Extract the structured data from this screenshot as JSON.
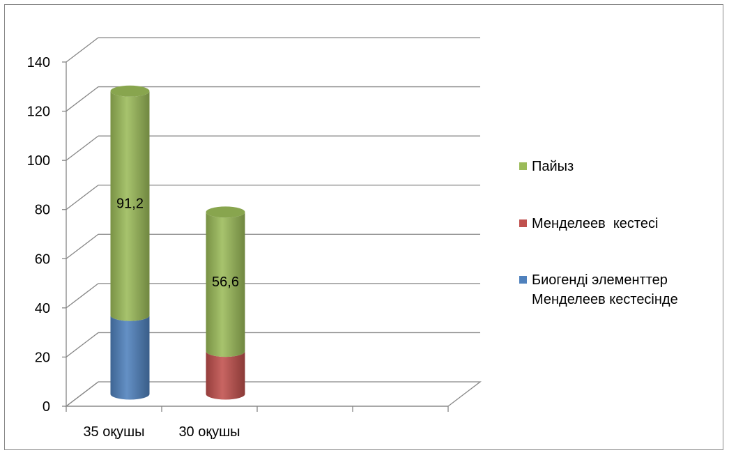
{
  "chart_data": {
    "type": "bar",
    "stacked": true,
    "three_d": true,
    "categories": [
      "35 оқушы",
      "30 оқушы",
      "",
      ""
    ],
    "ylim": [
      0,
      140
    ],
    "yticks": [
      0,
      20,
      40,
      60,
      80,
      100,
      120,
      140
    ],
    "grid": true,
    "legend_position": "right",
    "series": [
      {
        "name": "Биогенді элементтер Менделеев кестесінде",
        "color": "#4F81BD",
        "values": [
          32,
          0,
          0,
          0
        ]
      },
      {
        "name": "Менделеев  кестесі",
        "color": "#C0504D",
        "values": [
          0,
          17.4,
          0,
          0
        ]
      },
      {
        "name": "Пайыз",
        "color": "#9BBB59",
        "values": [
          91.2,
          56.6,
          0,
          0
        ]
      }
    ],
    "data_labels": [
      {
        "category": "35 оқушы",
        "series": "Пайыз",
        "text": "91,2"
      },
      {
        "category": "30 оқушы",
        "series": "Пайыз",
        "text": "56,6"
      }
    ]
  },
  "legend": {
    "items": [
      {
        "label": "Пайыз",
        "color": "#9BBB59"
      },
      {
        "label": "Менделеев  кестесі",
        "color": "#C0504D"
      },
      {
        "label_line1": "Биогенді элементтер",
        "label_line2": "Менделеев кестесінде",
        "color": "#4F81BD"
      }
    ]
  }
}
